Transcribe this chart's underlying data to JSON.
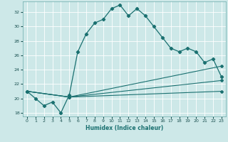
{
  "xlabel": "Humidex (Indice chaleur)",
  "ylabel": "",
  "bg_color": "#cde8e8",
  "grid_color": "#ffffff",
  "line_color": "#1a7070",
  "xlim": [
    -0.5,
    23.5
  ],
  "ylim": [
    17.5,
    33.5
  ],
  "xticks": [
    0,
    1,
    2,
    3,
    4,
    5,
    6,
    7,
    8,
    9,
    10,
    11,
    12,
    13,
    14,
    15,
    16,
    17,
    18,
    19,
    20,
    21,
    22,
    23
  ],
  "yticks": [
    18,
    20,
    22,
    24,
    26,
    28,
    30,
    32
  ],
  "line1_x": [
    0,
    1,
    2,
    3,
    4,
    5,
    6,
    7,
    8,
    9,
    10,
    11,
    12,
    13,
    14,
    15,
    16,
    17,
    18,
    19,
    20,
    21,
    22,
    23
  ],
  "line1_y": [
    21.0,
    20.0,
    19.0,
    19.5,
    18.0,
    20.5,
    26.5,
    29.0,
    30.5,
    31.0,
    32.5,
    33.0,
    31.5,
    32.5,
    31.5,
    30.0,
    28.5,
    27.0,
    26.5,
    27.0,
    26.5,
    25.0,
    25.5,
    23.0
  ],
  "line2_x": [
    0,
    5,
    23
  ],
  "line2_y": [
    21.0,
    20.2,
    24.5
  ],
  "line3_x": [
    0,
    5,
    23
  ],
  "line3_y": [
    21.0,
    20.2,
    22.5
  ],
  "line4_x": [
    0,
    5,
    23
  ],
  "line4_y": [
    21.0,
    20.2,
    21.0
  ]
}
